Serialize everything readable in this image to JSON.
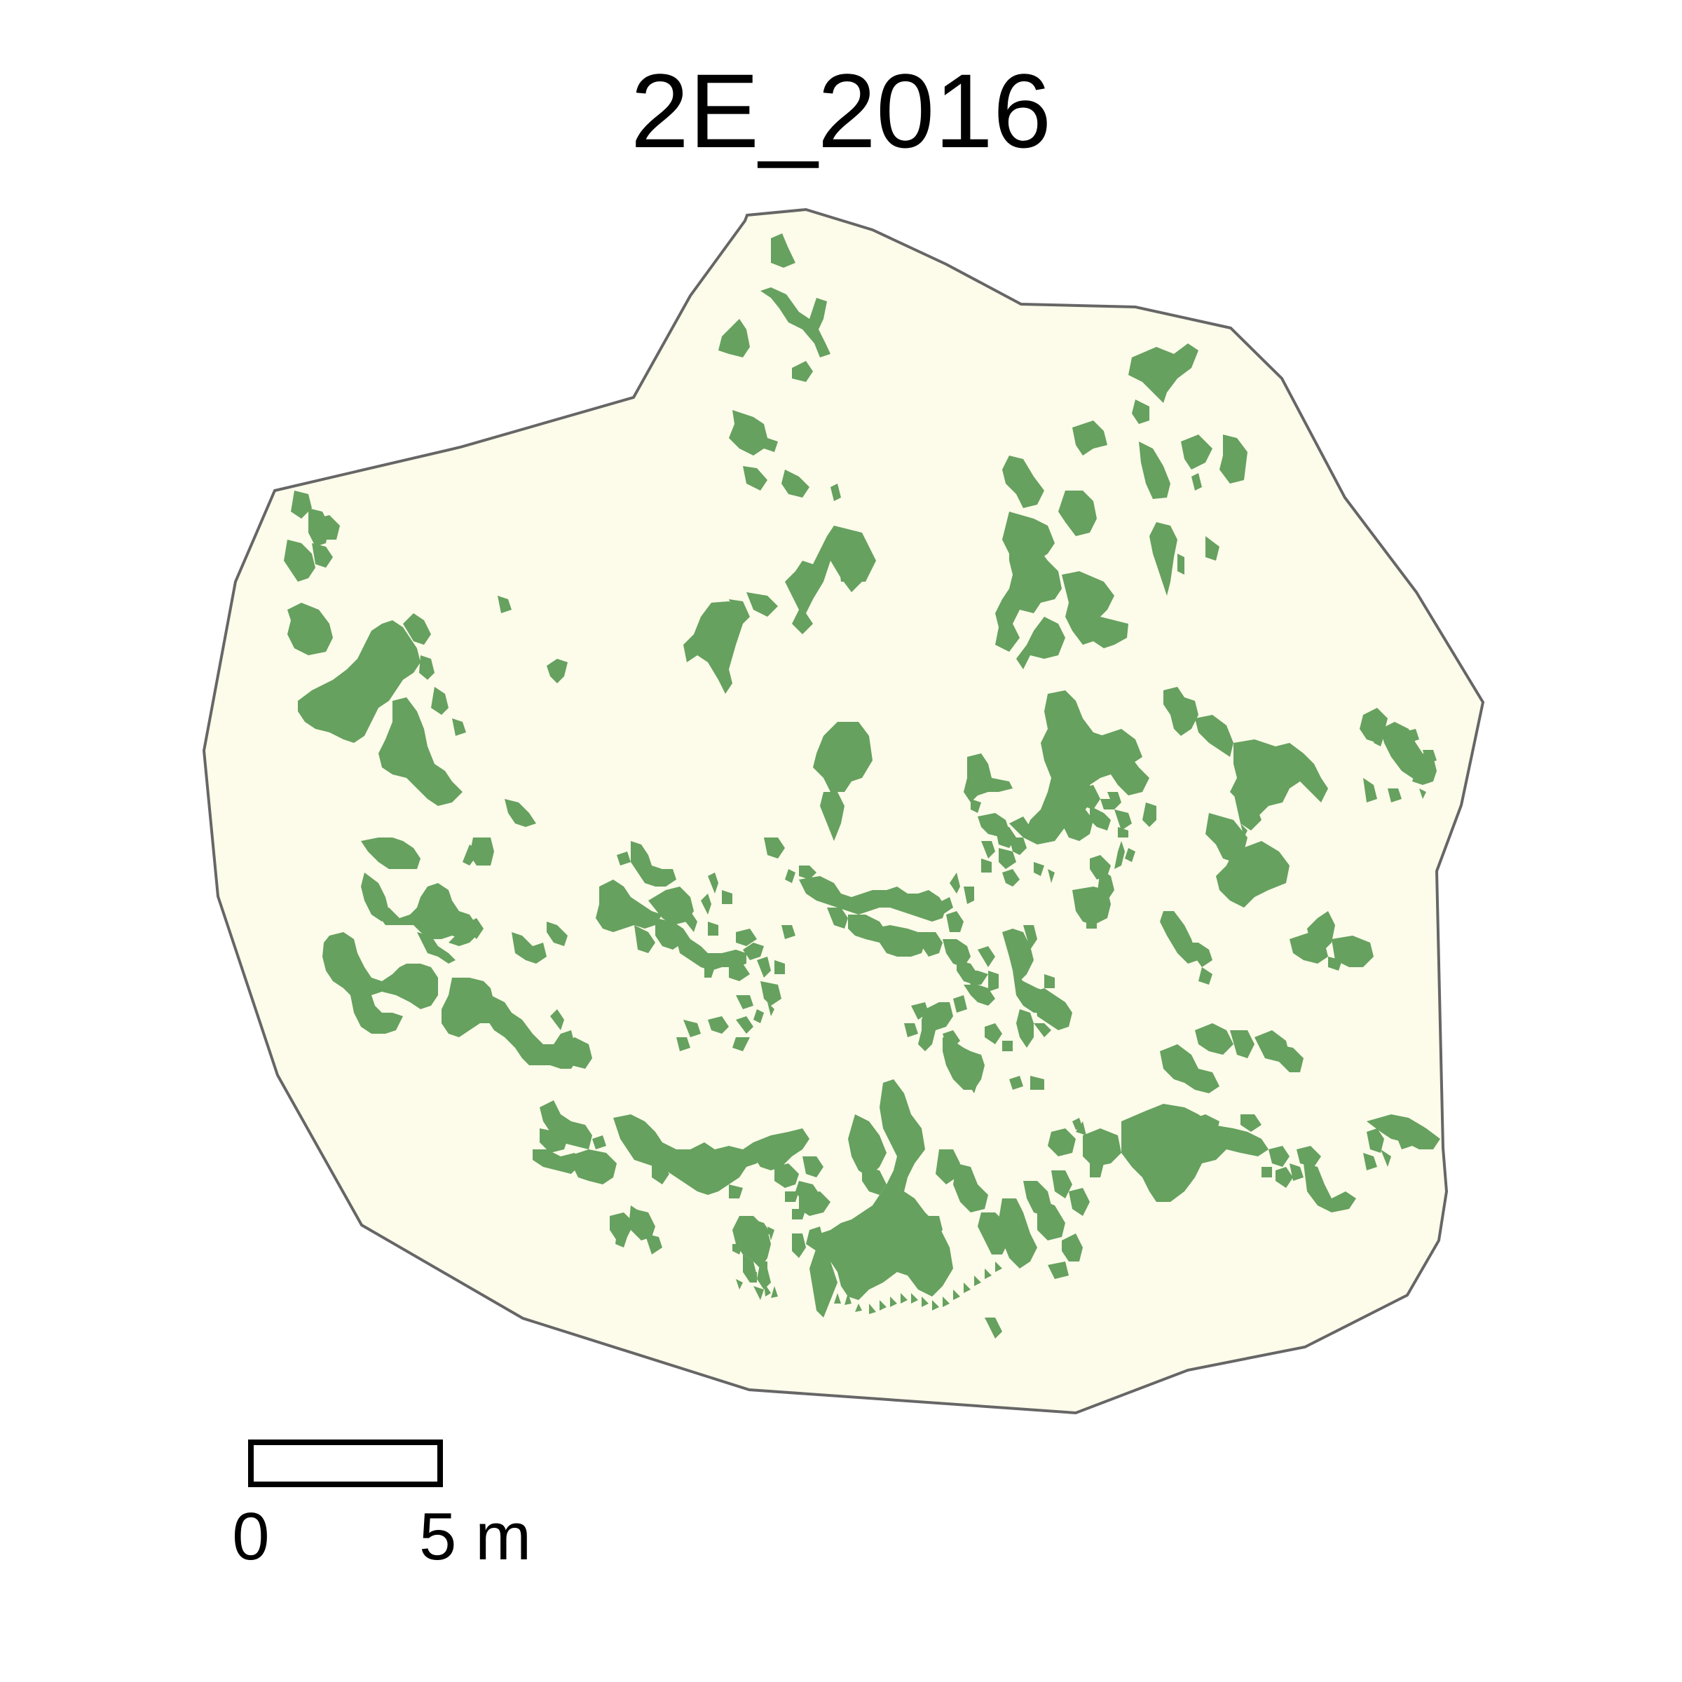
{
  "map": {
    "title": "2E_2016",
    "colors": {
      "plot_fill": "#fdfbea",
      "plot_outline": "#666666",
      "patch_fill": "#66a15f",
      "text": "#000000"
    },
    "scale_bar": {
      "label_start": "0",
      "label_end": "5 m"
    }
  }
}
